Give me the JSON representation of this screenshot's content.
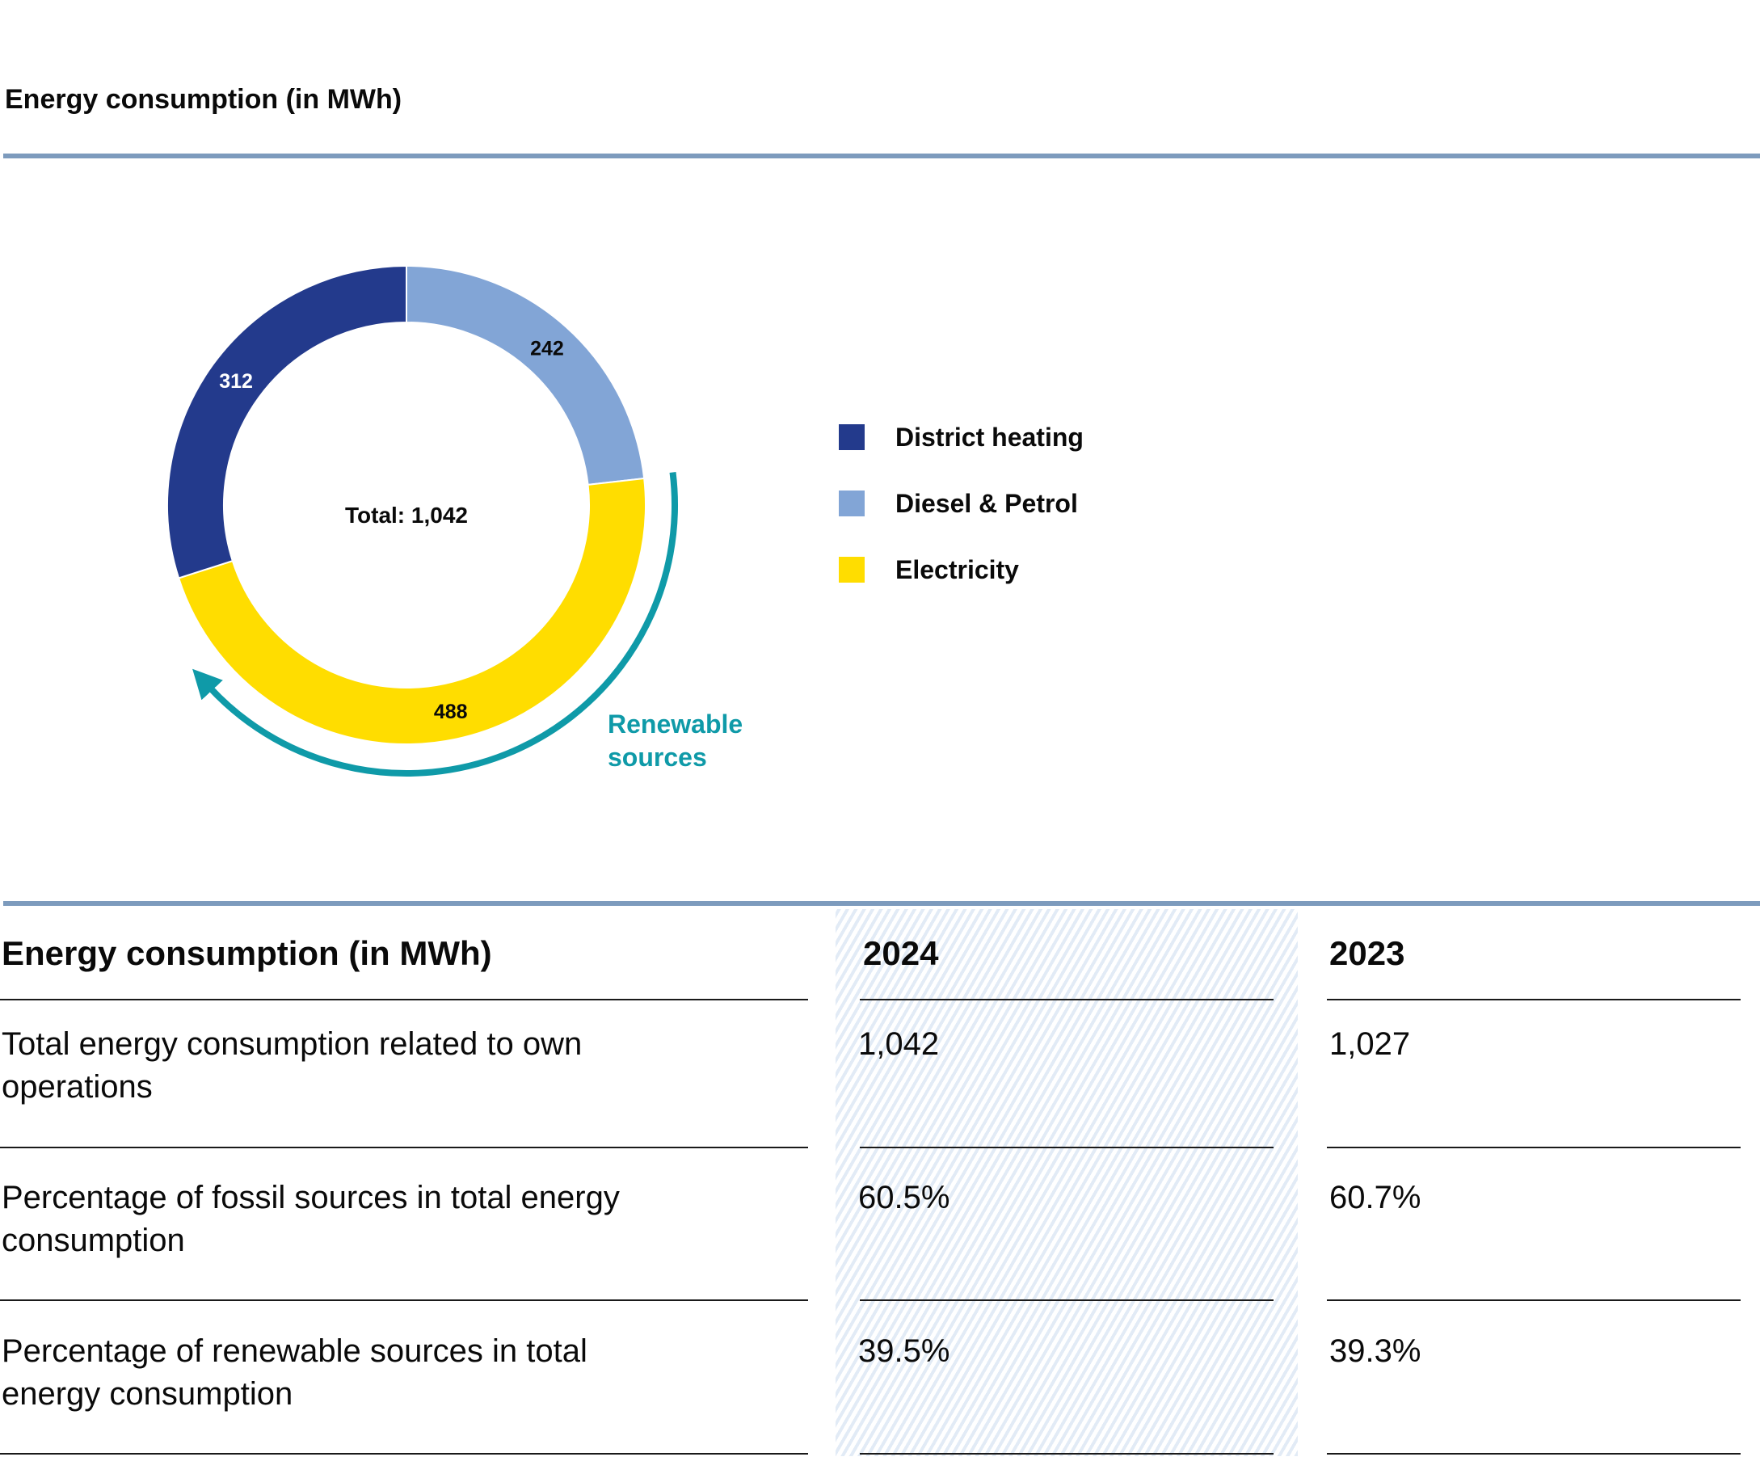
{
  "header": {
    "title": "Energy consumption (in MWh)"
  },
  "chart_data": {
    "type": "pie",
    "title": "Energy consumption (in MWh)",
    "slices": [
      {
        "label": "District heating",
        "value": 312,
        "color": "#233a8c"
      },
      {
        "label": "Diesel & Petrol",
        "value": 242,
        "color": "#82a5d6"
      },
      {
        "label": "Electricity",
        "value": 488,
        "color": "#ffdd00"
      }
    ],
    "center_label": "Total: 1,042",
    "annotation": {
      "text": "Renewable sources",
      "color": "#0f9aa8"
    },
    "legend_position": "right"
  },
  "table": {
    "header": "Energy consumption (in MWh)",
    "columns": [
      "2024",
      "2023"
    ],
    "rows": [
      {
        "label": "Total energy consumption related to own operations",
        "values": [
          "1,042",
          "1,027"
        ]
      },
      {
        "label": "Percentage of fossil sources in total energy consumption",
        "values": [
          "60.5%",
          "60.7%"
        ]
      },
      {
        "label": "Percentage of renewable sources in total energy consumption",
        "values": [
          "39.5%",
          "39.3%"
        ]
      }
    ]
  }
}
